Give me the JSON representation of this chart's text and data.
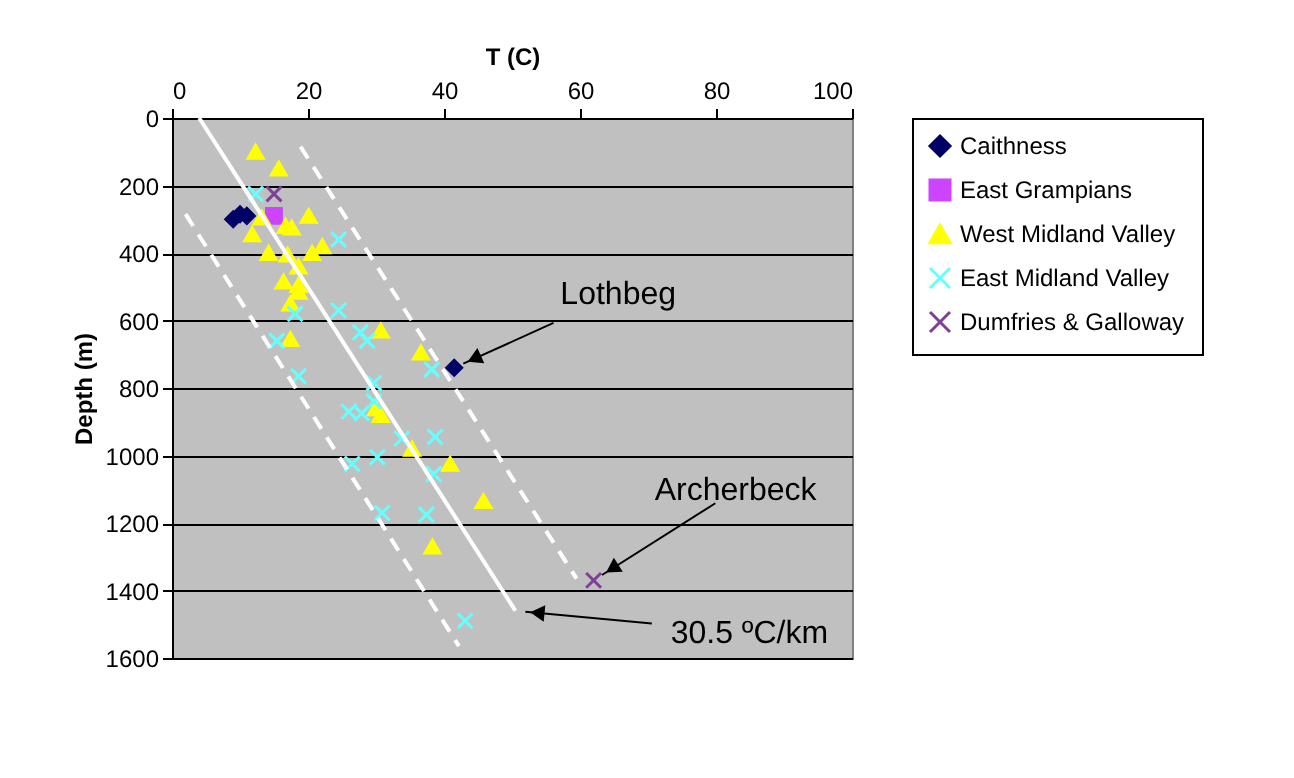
{
  "chart_data": {
    "type": "scatter",
    "xlabel": "T (C)",
    "ylabel": "Depth (m)",
    "xlim": [
      0,
      100
    ],
    "xticks": [
      0,
      20,
      40,
      60,
      80,
      100
    ],
    "ylim": [
      1600,
      0
    ],
    "yticks": [
      0,
      200,
      400,
      600,
      800,
      1000,
      1200,
      1400,
      1600
    ],
    "grid": "y",
    "legend": "right",
    "series": [
      {
        "name": "Caithness",
        "color": "#000066",
        "marker": "diamond",
        "x": [
          9,
          10,
          11,
          41.5
        ],
        "values": [
          300,
          285,
          290,
          740
        ]
      },
      {
        "name": "East Grampians",
        "color": "#cc44ff",
        "marker": "square",
        "x": [
          15
        ],
        "values": [
          290
        ]
      },
      {
        "name": "West Midland Valley",
        "color": "#ffff00",
        "marker": "triangle",
        "x": [
          12.3,
          15.7,
          13.2,
          20.1,
          16.7,
          17.6,
          11.8,
          14.2,
          17,
          20.6,
          22.1,
          18.6,
          16.4,
          18.6,
          18.6,
          17.4,
          17.4,
          30.7,
          36.6,
          30.7,
          30,
          35.3,
          40.9,
          45.8,
          38.3
        ],
        "values": [
          100,
          150,
          295,
          290,
          320,
          325,
          345,
          400,
          405,
          400,
          380,
          440,
          485,
          495,
          515,
          550,
          655,
          630,
          695,
          880,
          860,
          980,
          1025,
          1135,
          1270
        ]
      },
      {
        "name": "East Midland Valley",
        "color": "#66ffff",
        "marker": "cross",
        "x": [
          12.3,
          24.5,
          18.1,
          24.5,
          27.7,
          28.7,
          15.4,
          38.2,
          18.6,
          29.7,
          29.7,
          26,
          27.9,
          38.7,
          33.8,
          30.2,
          26.5,
          38.5,
          30.9,
          37.4,
          43.1
        ],
        "values": [
          225,
          360,
          580,
          570,
          635,
          660,
          660,
          745,
          765,
          785,
          840,
          870,
          875,
          945,
          950,
          1005,
          1025,
          1055,
          1170,
          1175,
          1490
        ]
      },
      {
        "name": "Dumfries & Galloway",
        "color": "#7f3f98",
        "marker": "cross",
        "x": [
          15,
          62
        ],
        "values": [
          225,
          1370
        ]
      },
      {
        "type": "line",
        "color": "#ffffff",
        "line_style": "solid",
        "x": [
          4,
          50.5
        ],
        "values": [
          0,
          1460
        ]
      },
      {
        "type": "line",
        "color": "#ffffff",
        "line_style": "dashed",
        "x": [
          2,
          42.2
        ],
        "values": [
          285,
          1565
        ]
      },
      {
        "type": "line",
        "color": "#ffffff",
        "line_style": "dashed",
        "x": [
          18.9,
          59.5
        ],
        "values": [
          85,
          1365
        ]
      }
    ],
    "annotations": [
      {
        "text": "Lothbeg",
        "x": 41.5,
        "y": 740
      },
      {
        "text": "Archerbeck",
        "x": 62,
        "y": 1370
      },
      {
        "text": "30.5 ºC/km",
        "x": 50.5,
        "y": 1460
      }
    ]
  }
}
